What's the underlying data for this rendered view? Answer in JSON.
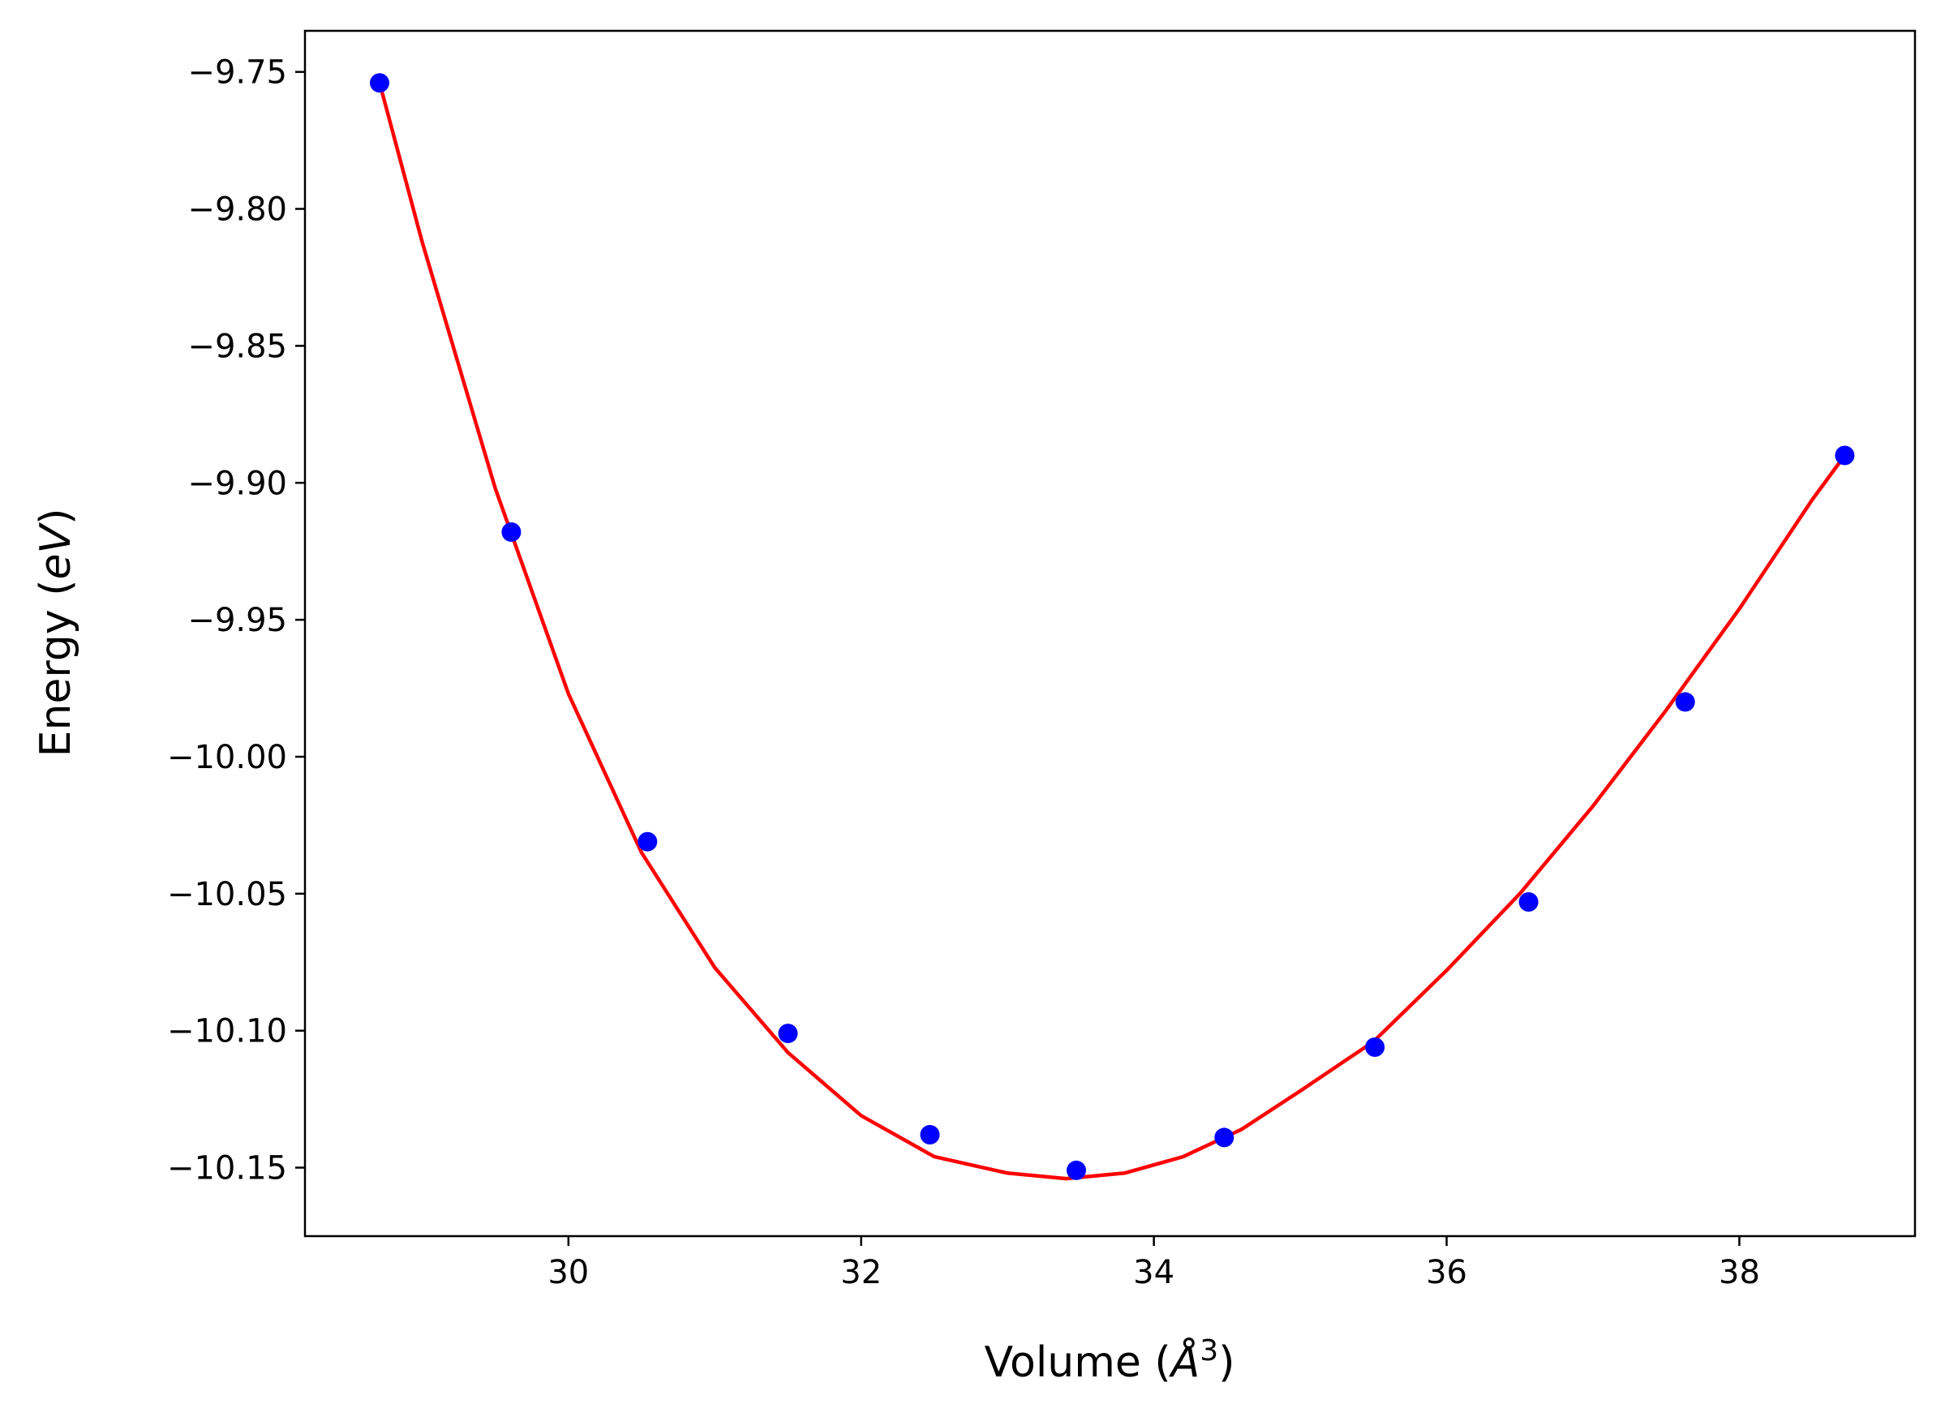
{
  "chart_data": {
    "type": "scatter",
    "title": "",
    "xlabel": "Volume (",
    "xlabel_unit": "Å",
    "xlabel_sup": "3",
    "xlabel_close": ")",
    "ylabel": "Energy (",
    "ylabel_unit": "eV",
    "ylabel_close": ")",
    "xlim": [
      28.2,
      39.2
    ],
    "ylim": [
      -10.175,
      -9.735
    ],
    "xticks": [
      30,
      32,
      34,
      36,
      38
    ],
    "xtick_labels": [
      "30",
      "32",
      "34",
      "36",
      "38"
    ],
    "yticks": [
      -9.75,
      -9.8,
      -9.85,
      -9.9,
      -9.95,
      -10.0,
      -10.05,
      -10.1,
      -10.15
    ],
    "ytick_labels": [
      "−9.75",
      "−9.80",
      "−9.85",
      "−9.90",
      "−9.95",
      "−10.00",
      "−10.05",
      "−10.10",
      "−10.15"
    ],
    "grid": false,
    "series": [
      {
        "kind": "points",
        "color": "#0000ff",
        "x": [
          28.71,
          29.61,
          30.54,
          31.5,
          32.47,
          33.47,
          34.48,
          35.51,
          36.56,
          37.63,
          38.72
        ],
        "y": [
          -9.754,
          -9.918,
          -10.031,
          -10.101,
          -10.138,
          -10.151,
          -10.139,
          -10.106,
          -10.053,
          -9.98,
          -9.89
        ]
      },
      {
        "kind": "fit-curve",
        "color": "#ff0000",
        "x": [
          28.71,
          29.0,
          29.5,
          30.0,
          30.5,
          31.0,
          31.5,
          32.0,
          32.5,
          33.0,
          33.4,
          33.8,
          34.2,
          34.6,
          35.0,
          35.5,
          36.0,
          36.5,
          37.0,
          37.5,
          38.0,
          38.5,
          38.72
        ],
        "y": [
          -9.754,
          -9.812,
          -9.902,
          -9.977,
          -10.035,
          -10.077,
          -10.108,
          -10.131,
          -10.146,
          -10.152,
          -10.154,
          -10.152,
          -10.146,
          -10.136,
          -10.122,
          -10.104,
          -10.078,
          -10.05,
          -10.018,
          -9.983,
          -9.946,
          -9.906,
          -9.89
        ]
      }
    ]
  }
}
